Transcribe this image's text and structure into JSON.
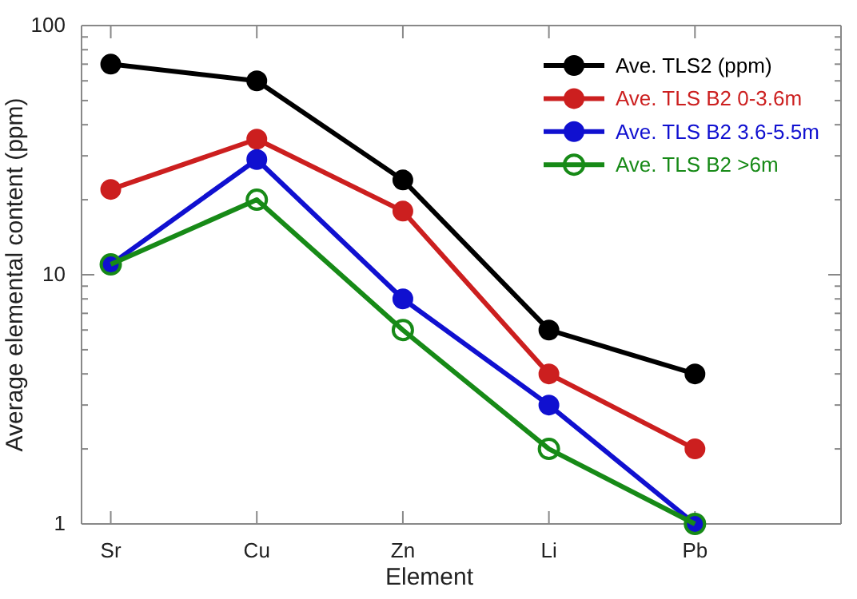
{
  "chart_data": {
    "type": "line",
    "xlabel": "Element",
    "ylabel": "Average elemental content (ppm)",
    "categories": [
      "Sr",
      "Cu",
      "Zn",
      "Li",
      "Pb"
    ],
    "series": [
      {
        "name": "Ave. TLS2 (ppm)",
        "color": "#000000",
        "values": [
          70,
          60,
          24,
          6,
          4
        ]
      },
      {
        "name": "Ave. TLS B2 0-3.6m",
        "color": "#cc1f1f",
        "values": [
          22,
          35,
          18,
          4,
          2
        ]
      },
      {
        "name": "Ave. TLS B2 3.6-5.5m",
        "color": "#1010d0",
        "values": [
          11,
          29,
          8,
          3,
          1
        ]
      },
      {
        "name": "Ave. TLS B2 >6m",
        "color": "#178a17",
        "marker": "circle-open",
        "values": [
          11,
          20,
          6,
          2,
          1
        ]
      }
    ],
    "log": "y",
    "ylim": [
      1,
      100
    ],
    "yticks": [
      1,
      {
        "value": 2,
        "label": null
      },
      {
        "value": 3,
        "label": null
      },
      {
        "value": 4,
        "label": null
      },
      {
        "value": 5,
        "label": null
      },
      {
        "value": 6,
        "label": null
      },
      {
        "value": 7,
        "label": null
      },
      {
        "value": 8,
        "label": null
      },
      {
        "value": 9,
        "label": null
      },
      10,
      {
        "value": 20,
        "label": null
      },
      {
        "value": 30,
        "label": null
      },
      {
        "value": 40,
        "label": null
      },
      {
        "value": 50,
        "label": null
      },
      {
        "value": 60,
        "label": null
      },
      {
        "value": 70,
        "label": null
      },
      {
        "value": 80,
        "label": null
      },
      {
        "value": 90,
        "label": null
      },
      100
    ],
    "grid": false,
    "legend": "top right",
    "marker": "circle",
    "line_style": "solid"
  }
}
